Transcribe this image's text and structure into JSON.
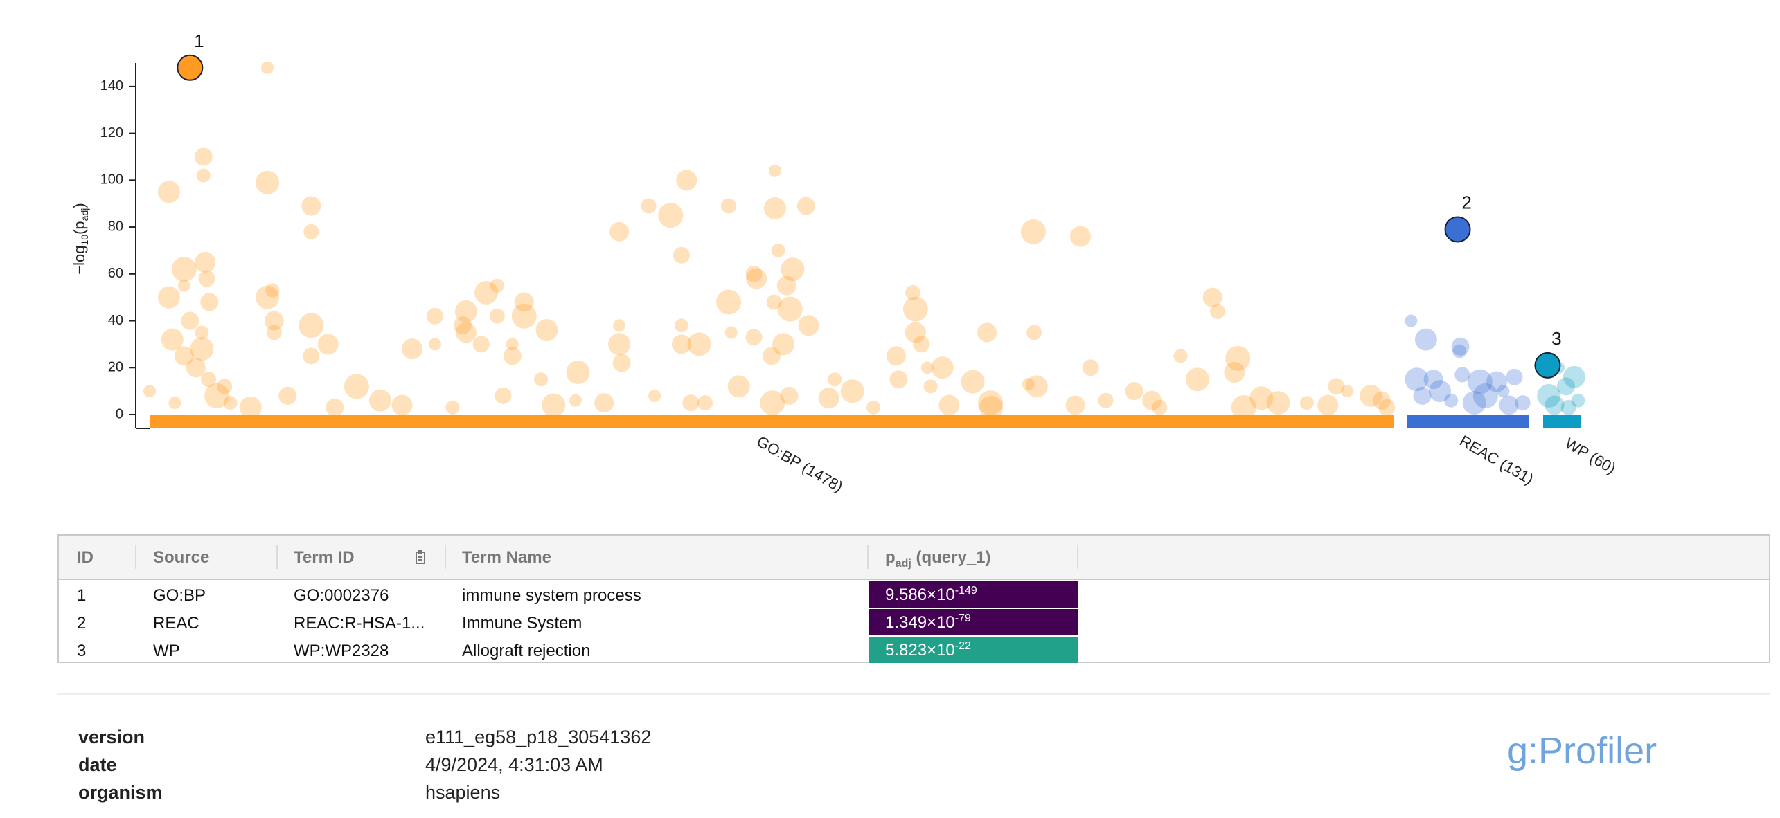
{
  "chart_data": {
    "type": "manhattan",
    "y_label": [
      "−log",
      "10",
      "(p",
      "adj",
      ")"
    ],
    "ylim": [
      0,
      150
    ],
    "yticks": [
      0,
      20,
      40,
      60,
      80,
      100,
      120,
      140
    ],
    "sources": [
      {
        "label": "GO:BP (1478)",
        "count": 1478,
        "color": "#ff9a22",
        "points": [
          [
            140,
            148
          ],
          [
            23,
            95
          ],
          [
            64,
            110
          ],
          [
            64,
            102
          ],
          [
            140,
            99
          ],
          [
            192,
            89
          ],
          [
            192,
            78
          ],
          [
            41,
            62
          ],
          [
            66,
            65
          ],
          [
            68,
            58
          ],
          [
            41,
            55
          ],
          [
            23,
            50
          ],
          [
            71,
            48
          ],
          [
            146,
            53
          ],
          [
            140,
            50
          ],
          [
            148,
            40
          ],
          [
            148,
            35
          ],
          [
            192,
            38
          ],
          [
            212,
            30
          ],
          [
            192,
            25
          ],
          [
            0,
            10
          ],
          [
            27,
            32
          ],
          [
            48,
            40
          ],
          [
            62,
            35
          ],
          [
            62,
            28
          ],
          [
            41,
            25
          ],
          [
            89,
            12
          ],
          [
            246,
            12
          ],
          [
            312,
            28
          ],
          [
            339,
            42
          ],
          [
            339,
            30
          ],
          [
            376,
            44
          ],
          [
            372,
            38
          ],
          [
            413,
            55
          ],
          [
            400,
            52
          ],
          [
            445,
            48
          ],
          [
            413,
            42
          ],
          [
            445,
            42
          ],
          [
            376,
            35
          ],
          [
            394,
            30
          ],
          [
            431,
            30
          ],
          [
            472,
            36
          ],
          [
            431,
            25
          ],
          [
            465,
            15
          ],
          [
            509,
            18
          ],
          [
            558,
            78
          ],
          [
            593,
            89
          ],
          [
            619,
            85
          ],
          [
            638,
            100
          ],
          [
            632,
            68
          ],
          [
            558,
            38
          ],
          [
            558,
            30
          ],
          [
            561,
            22
          ],
          [
            632,
            38
          ],
          [
            653,
            30
          ],
          [
            632,
            30
          ],
          [
            688,
            89
          ],
          [
            688,
            48
          ],
          [
            721,
            58
          ],
          [
            718,
            60
          ],
          [
            743,
            104
          ],
          [
            743,
            88
          ],
          [
            780,
            89
          ],
          [
            747,
            70
          ],
          [
            764,
            62
          ],
          [
            757,
            55
          ],
          [
            742,
            48
          ],
          [
            761,
            45
          ],
          [
            783,
            38
          ],
          [
            718,
            33
          ],
          [
            691,
            35
          ],
          [
            753,
            30
          ],
          [
            739,
            25
          ],
          [
            814,
            15
          ],
          [
            835,
            10
          ],
          [
            887,
            25
          ],
          [
            907,
            52
          ],
          [
            910,
            45
          ],
          [
            910,
            35
          ],
          [
            917,
            30
          ],
          [
            924,
            20
          ],
          [
            942,
            20
          ],
          [
            890,
            15
          ],
          [
            928,
            12
          ],
          [
            978,
            14
          ],
          [
            995,
            35
          ],
          [
            1051,
            35
          ],
          [
            1050,
            78
          ],
          [
            1106,
            76
          ],
          [
            1118,
            20
          ],
          [
            1044,
            13
          ],
          [
            1054,
            12
          ],
          [
            1170,
            10
          ],
          [
            1225,
            25
          ],
          [
            1245,
            15
          ],
          [
            1263,
            50
          ],
          [
            1269,
            44
          ],
          [
            1293,
            24
          ],
          [
            1289,
            18
          ],
          [
            1410,
            12
          ],
          [
            1423,
            10
          ],
          [
            1451,
            8
          ],
          [
            1464,
            6
          ],
          [
            1375,
            5
          ],
          [
            1321,
            7
          ],
          [
            1191,
            6
          ],
          [
            1136,
            6
          ],
          [
            999,
            5
          ],
          [
            807,
            7
          ],
          [
            643,
            5
          ],
          [
            506,
            6
          ],
          [
            274,
            6
          ],
          [
            164,
            8
          ],
          [
            96,
            5
          ],
          [
            1341,
            5
          ],
          [
            55,
            20
          ],
          [
            70,
            15
          ],
          [
            80,
            8
          ],
          [
            300,
            4
          ],
          [
            420,
            8
          ],
          [
            600,
            8
          ],
          [
            700,
            12
          ],
          [
            760,
            8
          ],
          [
            860,
            3
          ],
          [
            1000,
            3
          ],
          [
            1100,
            4
          ],
          [
            1200,
            3
          ],
          [
            1300,
            3
          ],
          [
            1400,
            4
          ],
          [
            1470,
            3
          ],
          [
            30,
            5
          ],
          [
            120,
            3
          ],
          [
            220,
            3
          ],
          [
            360,
            3
          ],
          [
            480,
            4
          ],
          [
            540,
            5
          ],
          [
            660,
            5
          ],
          [
            740,
            5
          ],
          [
            950,
            4
          ]
        ]
      },
      {
        "label": "REAC (131)",
        "count": 131,
        "color": "#3b6fd4",
        "points": [
          [
            4,
            40
          ],
          [
            20,
            32
          ],
          [
            57,
            29
          ],
          [
            56,
            27
          ],
          [
            10,
            15
          ],
          [
            28,
            15
          ],
          [
            59,
            17
          ],
          [
            78,
            14
          ],
          [
            96,
            14
          ],
          [
            115,
            16
          ],
          [
            103,
            10
          ],
          [
            35,
            10
          ],
          [
            16,
            8
          ],
          [
            47,
            6
          ],
          [
            72,
            5
          ],
          [
            109,
            4
          ],
          [
            124,
            5
          ],
          [
            84,
            8
          ]
        ]
      },
      {
        "label": "WP (60)",
        "count": 60,
        "color": "#0e9bc4",
        "points": [
          [
            24,
            20
          ],
          [
            49,
            16
          ],
          [
            36,
            12
          ],
          [
            55,
            6
          ],
          [
            9,
            8
          ],
          [
            18,
            4
          ],
          [
            40,
            3
          ]
        ]
      }
    ],
    "highlights": [
      {
        "label": "1",
        "source": 0,
        "x": 48,
        "y": 148
      },
      {
        "label": "2",
        "source": 1,
        "x": 54,
        "y": 79
      },
      {
        "label": "3",
        "source": 2,
        "x": 7,
        "y": 21
      }
    ]
  },
  "table": {
    "headers": [
      "ID",
      "Source",
      "Term ID",
      "Term Name"
    ],
    "padj_header": [
      "p",
      "adj",
      "(query_1)"
    ],
    "rows": [
      {
        "id": "1",
        "source": "GO:BP",
        "term_id": "GO:0002376",
        "term_name": "immune system process",
        "mantissa": "9.586×10",
        "exponent": "-149",
        "color": "#440154"
      },
      {
        "id": "2",
        "source": "REAC",
        "term_id": "REAC:R-HSA-1...",
        "term_name": "Immune System",
        "mantissa": "1.349×10",
        "exponent": "-79",
        "color": "#440154"
      },
      {
        "id": "3",
        "source": "WP",
        "term_id": "WP:WP2328",
        "term_name": "Allograft rejection",
        "mantissa": "5.823×10",
        "exponent": "-22",
        "color": "#21a08a"
      }
    ]
  },
  "meta": [
    {
      "key": "version",
      "value": "e111_eg58_p18_30541362"
    },
    {
      "key": "date",
      "value": "4/9/2024, 4:31:03 AM"
    },
    {
      "key": "organism",
      "value": "hsapiens"
    }
  ],
  "logo": "g:Profiler"
}
